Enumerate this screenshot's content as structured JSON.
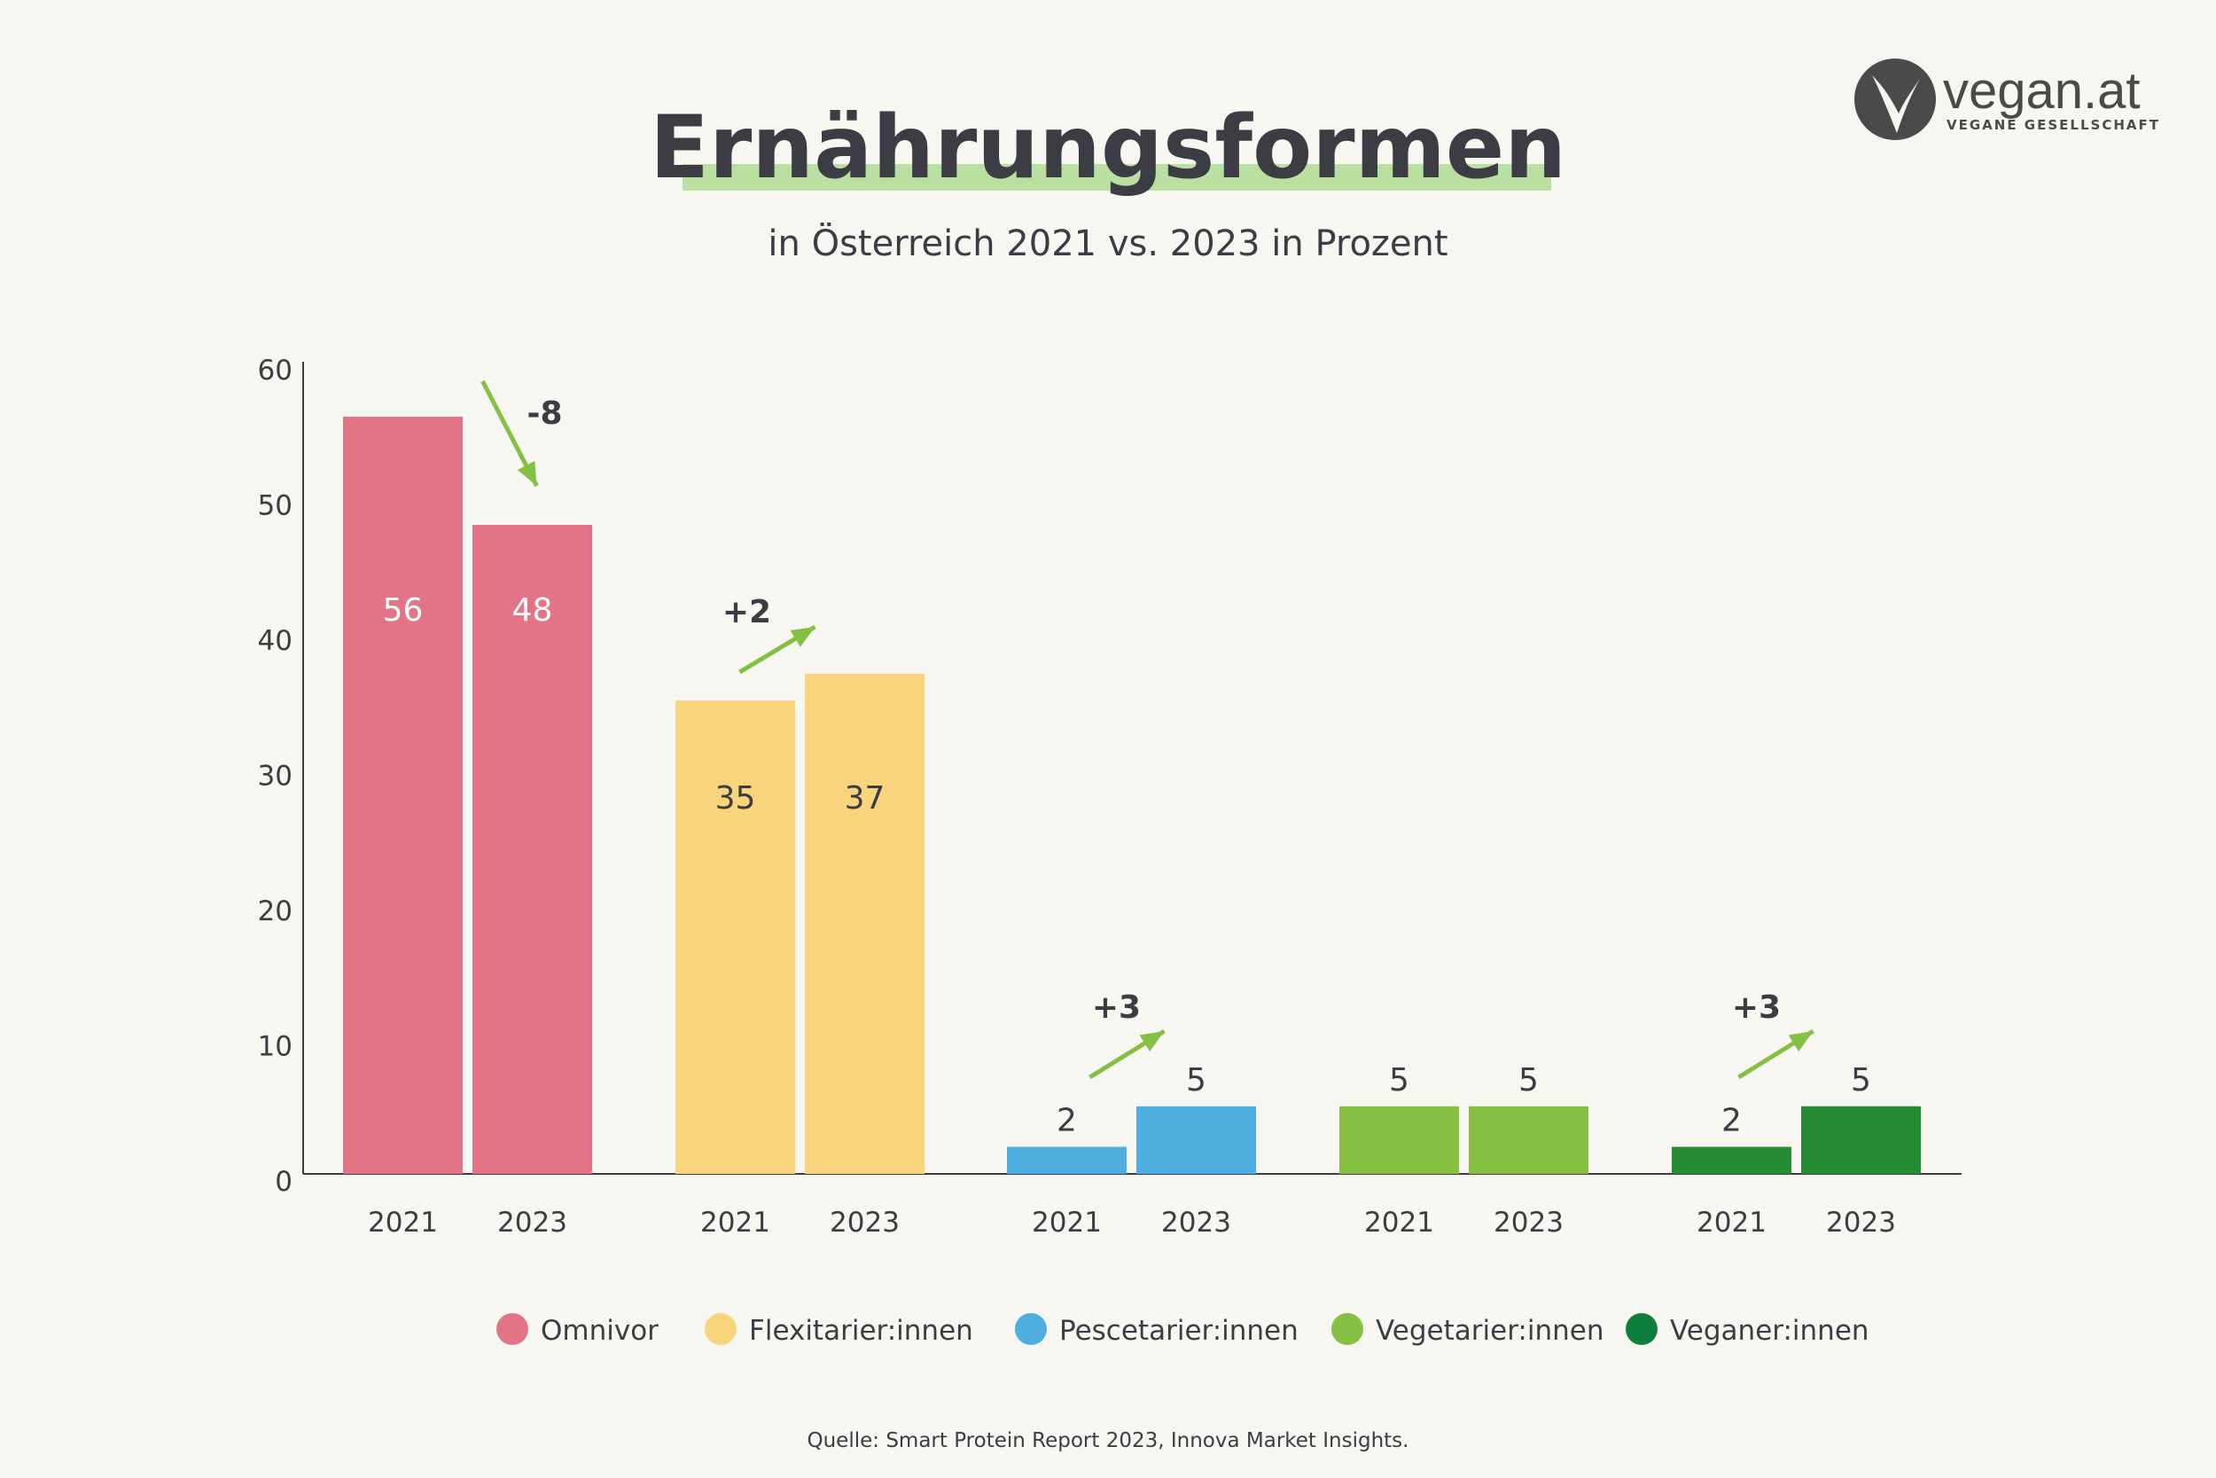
{
  "brand": {
    "name": "vegan.at",
    "tagline": "VEGANE GESELLSCHAFT"
  },
  "chart_data": {
    "type": "bar",
    "title": "Ernährungsformen",
    "subtitle": "in Österreich 2021 vs. 2023 in Prozent",
    "ylim": [
      0,
      60
    ],
    "yticks": [
      0,
      10,
      20,
      30,
      40,
      50,
      60
    ],
    "grid": false,
    "legend_position": "bottom",
    "groups": [
      {
        "name": "Omnivor",
        "color": "#e27485",
        "label_color": "#ffffff",
        "label_pos": "inside",
        "values": [
          56,
          48
        ],
        "years": [
          "2021",
          "2023"
        ],
        "change": "-8",
        "change_dir": "down"
      },
      {
        "name": "Flexitarier:innen",
        "color": "#f8d47c",
        "label_color": "#3c3d44",
        "label_pos": "inside",
        "values": [
          35,
          37
        ],
        "years": [
          "2021",
          "2023"
        ],
        "change": "+2",
        "change_dir": "up"
      },
      {
        "name": "Pescetarier:innen",
        "color": "#4faee0",
        "label_color": "#3c3d44",
        "label_pos": "above",
        "values": [
          2,
          5
        ],
        "years": [
          "2021",
          "2023"
        ],
        "change": "+3",
        "change_dir": "up"
      },
      {
        "name": "Vegetarier:innen",
        "color": "#86c043",
        "label_color": "#3c3d44",
        "label_pos": "above",
        "values": [
          5,
          5
        ],
        "years": [
          "2021",
          "2023"
        ],
        "change": "",
        "change_dir": ""
      },
      {
        "name": "Veganer:innen",
        "color": "#268b33",
        "legend_color": "#0e7f3c",
        "label_color": "#3c3d44",
        "label_pos": "above",
        "values": [
          2,
          5
        ],
        "years": [
          "2021",
          "2023"
        ],
        "change": "+3",
        "change_dir": "up"
      }
    ],
    "arrow_color": "#84c043",
    "highlight_color": "#b9e0a0",
    "source": "Quelle: Smart Protein Report 2023, Innova Market Insights."
  }
}
